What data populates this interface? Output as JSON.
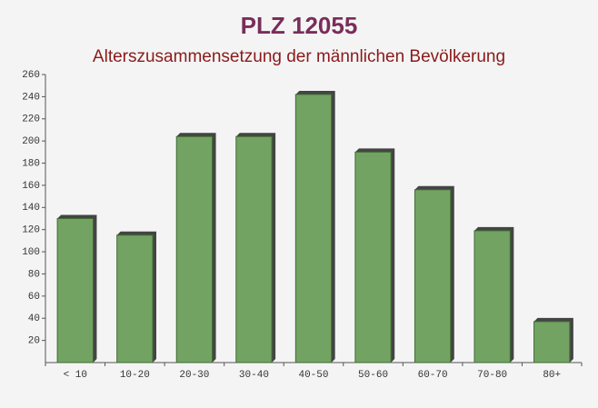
{
  "chart_data": {
    "type": "bar",
    "title": "PLZ 12055",
    "subtitle": "Alterszusammensetzung der männlichen Bevölkerung",
    "categories": [
      "< 10",
      "10-20",
      "20-30",
      "30-40",
      "40-50",
      "50-60",
      "60-70",
      "70-80",
      "80+"
    ],
    "values": [
      130,
      115,
      204,
      204,
      242,
      190,
      156,
      119,
      37
    ],
    "color": "#6a9e5a",
    "ylim": [
      0,
      260
    ],
    "yticks": [
      20,
      40,
      60,
      80,
      100,
      120,
      140,
      160,
      180,
      200,
      220,
      240,
      260
    ],
    "grid": false
  }
}
